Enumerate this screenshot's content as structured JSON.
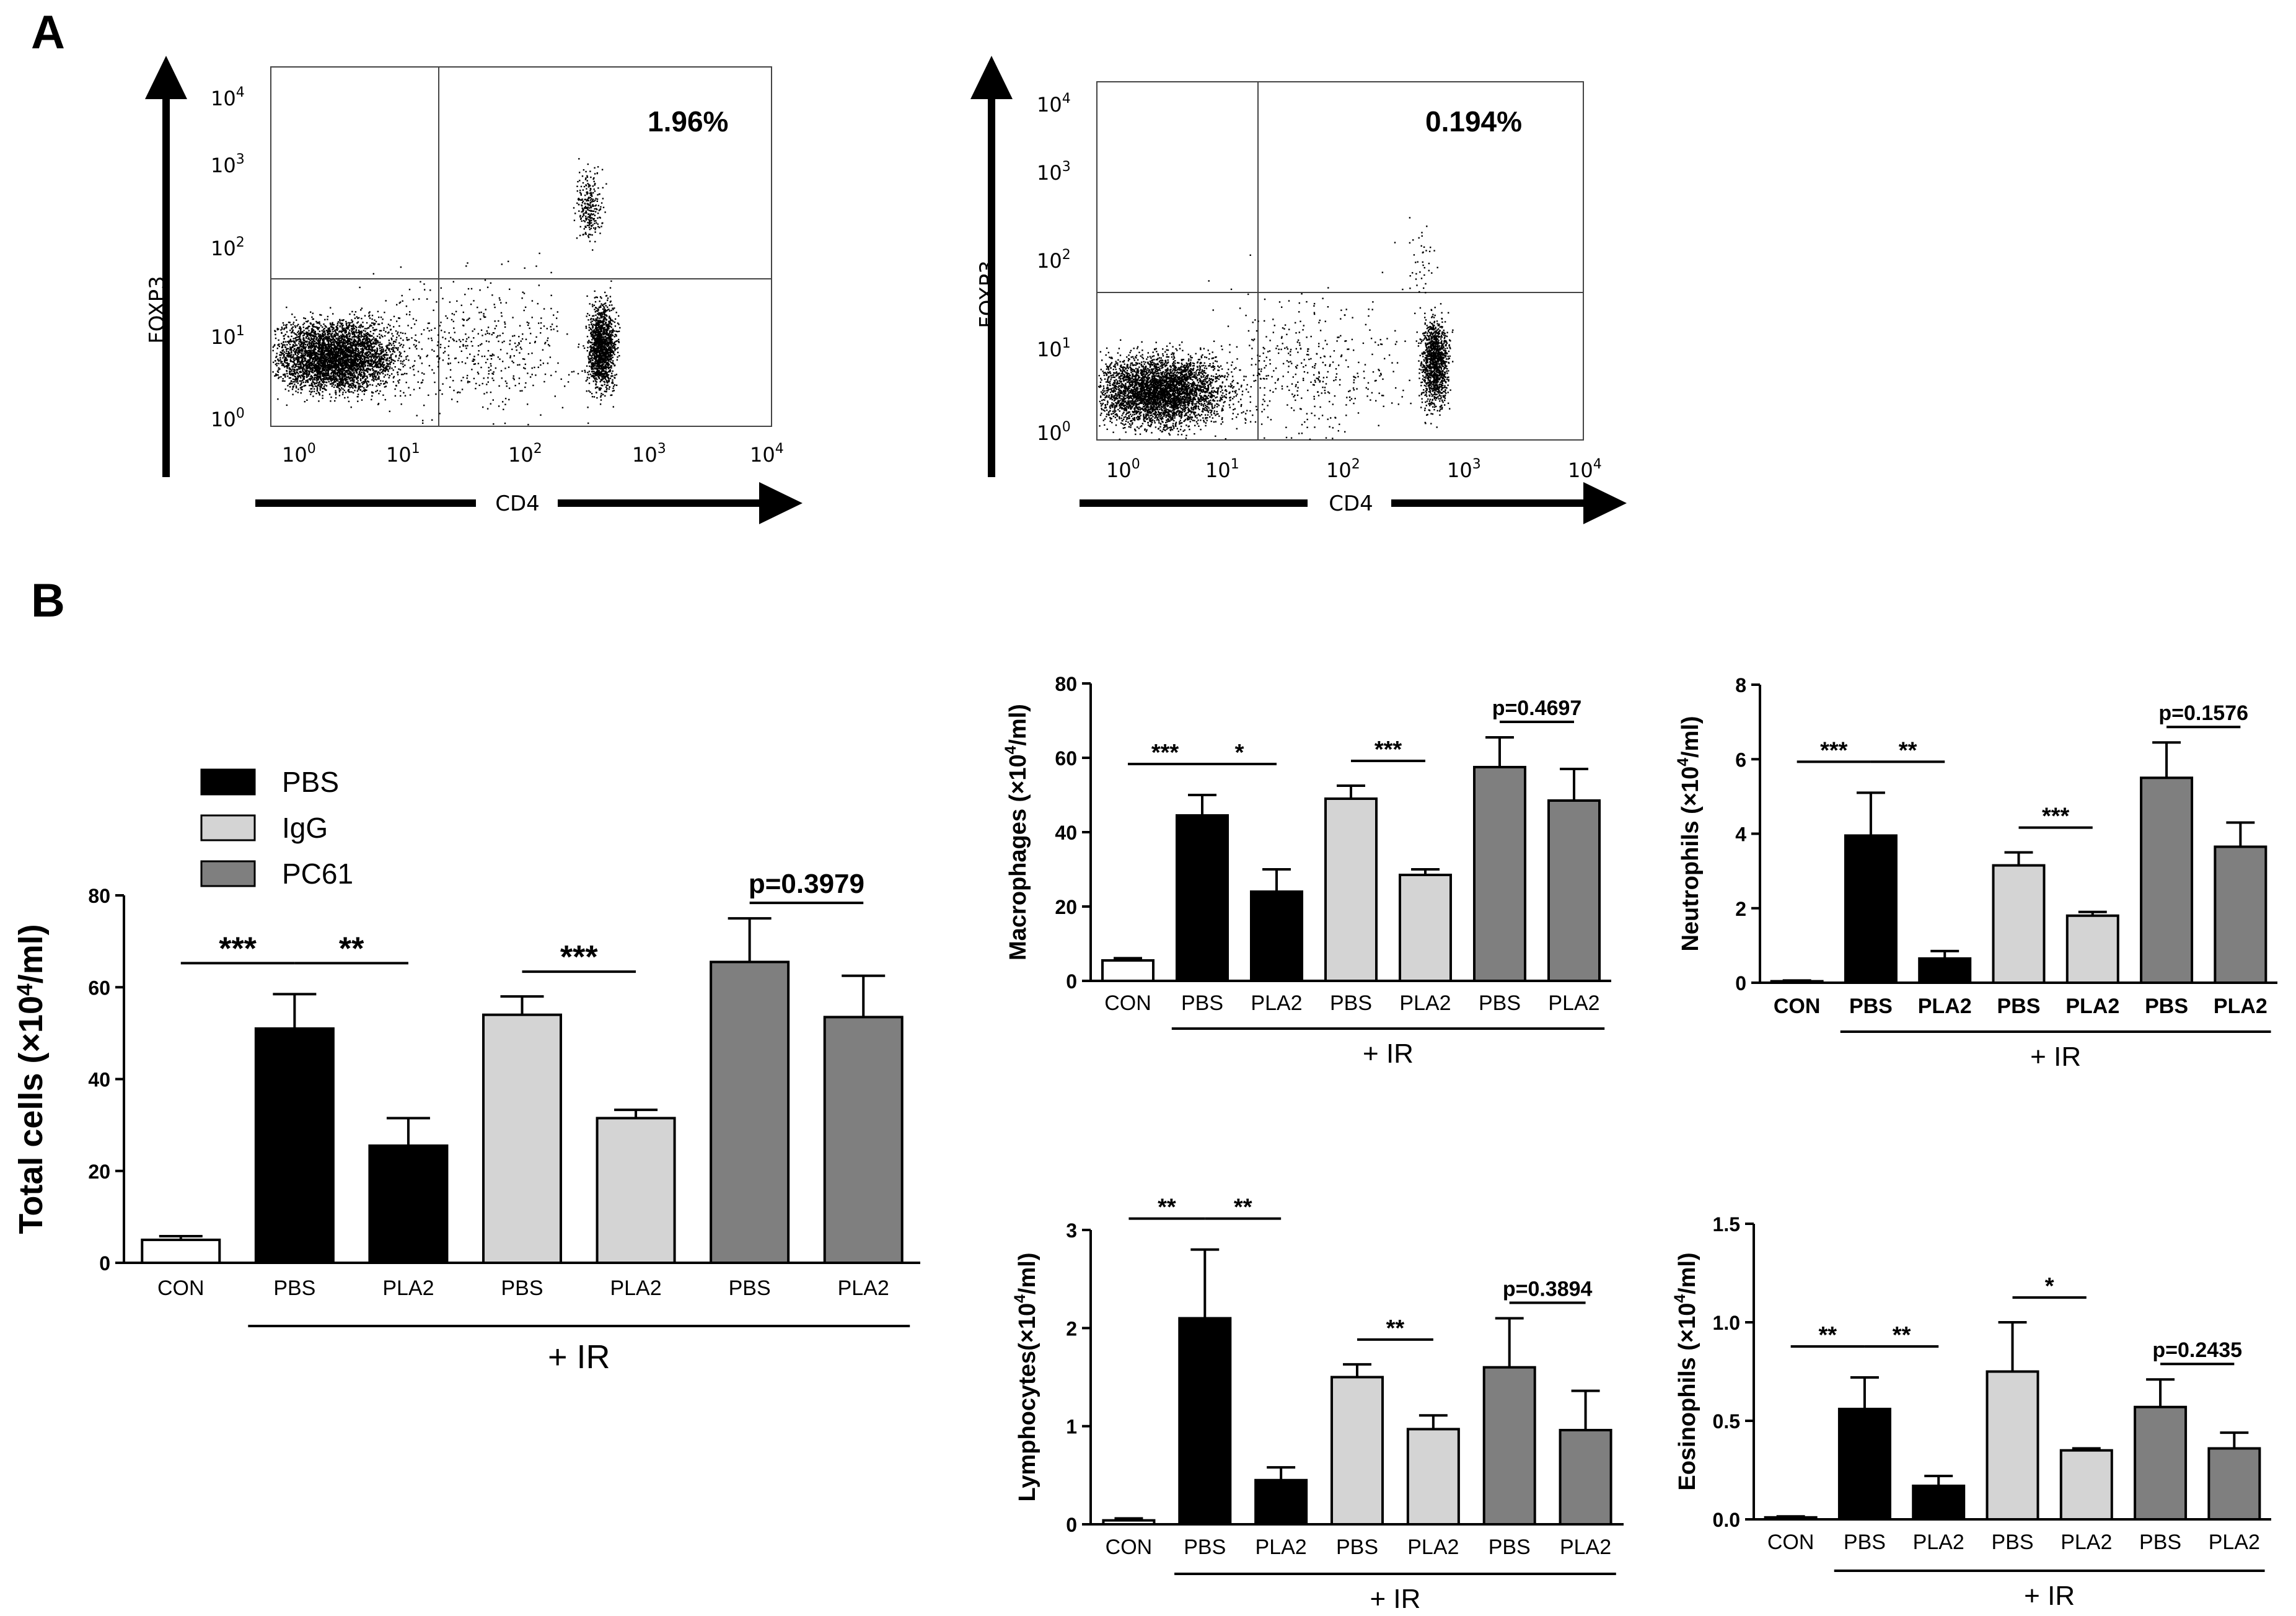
{
  "panels": {
    "a": "A",
    "b": "B"
  },
  "legend": [
    {
      "label": "PBS",
      "color": "#000000"
    },
    {
      "label": "IgG",
      "color": "#d4d4d4"
    },
    {
      "label": "PC61",
      "color": "#7f7f7f"
    }
  ],
  "colors": {
    "con": "#ffffff",
    "pbs": "#000000",
    "igg": "#d4d4d4",
    "pc61": "#7f7f7f"
  },
  "ir_label": "+ IR",
  "flow_data": [
    {
      "xlabel": "CD4",
      "ylabel": "FOXP3",
      "percent": "1.96%",
      "ticks": [
        "10",
        "10",
        "10",
        "10",
        "10"
      ],
      "exponents": [
        "0",
        "1",
        "2",
        "3",
        "4"
      ]
    },
    {
      "xlabel": "CD4",
      "ylabel": "FOXP3",
      "percent": "0.194%",
      "ticks": [
        "10",
        "10",
        "10",
        "10",
        "10"
      ],
      "exponents": [
        "0",
        "1",
        "2",
        "3",
        "4"
      ]
    }
  ],
  "chart_data": [
    {
      "type": "bar",
      "id": "total",
      "ylabel_pre": "Total cells (×10",
      "ylabel_exp": "4",
      "ylabel_post": "/ml)",
      "categories": [
        "CON",
        "PBS",
        "PLA2",
        "PBS",
        "PLA2",
        "PBS",
        "PLA2"
      ],
      "groups": [
        "con",
        "pbs",
        "pbs",
        "igg",
        "igg",
        "pc61",
        "pc61"
      ],
      "values": [
        5,
        51,
        25.5,
        54,
        31.5,
        65.5,
        53.5
      ],
      "errors": [
        0.8,
        7.5,
        6,
        4,
        1.8,
        9.5,
        9
      ],
      "ylim": [
        0,
        80
      ],
      "yticks": [
        "0",
        "20",
        "40",
        "60",
        "80"
      ],
      "significance": [
        {
          "label": "***",
          "from": 0,
          "to": 1
        },
        {
          "label": "**",
          "from": 1,
          "to": 2
        },
        {
          "label": "***",
          "from": 3,
          "to": 4
        },
        {
          "label": "p=0.3979",
          "from": 5,
          "to": 6
        }
      ]
    },
    {
      "type": "bar",
      "id": "macrophages",
      "ylabel_pre": "Macrophages (×10",
      "ylabel_exp": "4",
      "ylabel_post": "/ml)",
      "categories": [
        "CON",
        "PBS",
        "PLA2",
        "PBS",
        "PLA2",
        "PBS",
        "PLA2"
      ],
      "groups": [
        "con",
        "pbs",
        "pbs",
        "igg",
        "igg",
        "pc61",
        "pc61"
      ],
      "values": [
        5.5,
        44.5,
        24,
        49,
        28.5,
        57.5,
        48.5
      ],
      "errors": [
        0.6,
        5.5,
        6,
        3.5,
        1.5,
        8,
        8.5
      ],
      "ylim": [
        0,
        80
      ],
      "yticks": [
        "0",
        "20",
        "40",
        "60",
        "80"
      ],
      "significance": [
        {
          "label": "***",
          "from": 0,
          "to": 1
        },
        {
          "label": "*",
          "from": 1,
          "to": 2
        },
        {
          "label": "***",
          "from": 3,
          "to": 4
        },
        {
          "label": "p=0.4697",
          "from": 5,
          "to": 6
        }
      ]
    },
    {
      "type": "bar",
      "id": "neutrophils",
      "ylabel_pre": "Neutrophils (×10",
      "ylabel_exp": "4",
      "ylabel_post": "/ml)",
      "categories": [
        "CON",
        "PBS",
        "PLA2",
        "PBS",
        "PLA2",
        "PBS",
        "PLA2"
      ],
      "groups": [
        "con",
        "pbs",
        "pbs",
        "igg",
        "igg",
        "pc61",
        "pc61"
      ],
      "values": [
        0.04,
        3.95,
        0.65,
        3.15,
        1.8,
        5.5,
        3.65
      ],
      "errors": [
        0.02,
        1.15,
        0.2,
        0.35,
        0.1,
        0.95,
        0.65
      ],
      "ylim": [
        0,
        8
      ],
      "yticks": [
        "0",
        "2",
        "4",
        "6",
        "8"
      ],
      "significance": [
        {
          "label": "***",
          "from": 0,
          "to": 1
        },
        {
          "label": "**",
          "from": 1,
          "to": 2
        },
        {
          "label": "***",
          "from": 3,
          "to": 4
        },
        {
          "label": "p=0.1576",
          "from": 5,
          "to": 6
        }
      ]
    },
    {
      "type": "bar",
      "id": "lymphocytes",
      "ylabel_pre": "Lymphocytes(×10",
      "ylabel_exp": "4",
      "ylabel_post": "/ml)",
      "categories": [
        "CON",
        "PBS",
        "PLA2",
        "PBS",
        "PLA2",
        "PBS",
        "PLA2"
      ],
      "groups": [
        "con",
        "pbs",
        "pbs",
        "igg",
        "igg",
        "pc61",
        "pc61"
      ],
      "values": [
        0.04,
        2.1,
        0.45,
        1.5,
        0.97,
        1.6,
        0.96
      ],
      "errors": [
        0.02,
        0.7,
        0.13,
        0.13,
        0.14,
        0.5,
        0.4
      ],
      "ylim": [
        0,
        3
      ],
      "yticks": [
        "0",
        "1",
        "2",
        "3"
      ],
      "significance": [
        {
          "label": "**",
          "from": 0,
          "to": 1
        },
        {
          "label": "**",
          "from": 1,
          "to": 2
        },
        {
          "label": "**",
          "from": 3,
          "to": 4
        },
        {
          "label": "p=0.3894",
          "from": 5,
          "to": 6
        }
      ]
    },
    {
      "type": "bar",
      "id": "eosinophils",
      "ylabel_pre": "Eosinophils (×10",
      "ylabel_exp": "4",
      "ylabel_post": "/ml)",
      "categories": [
        "CON",
        "PBS",
        "PLA2",
        "PBS",
        "PLA2",
        "PBS",
        "PLA2"
      ],
      "groups": [
        "con",
        "pbs",
        "pbs",
        "igg",
        "igg",
        "pc61",
        "pc61"
      ],
      "values": [
        0.01,
        0.56,
        0.17,
        0.75,
        0.35,
        0.57,
        0.36
      ],
      "errors": [
        0.005,
        0.16,
        0.05,
        0.25,
        0.01,
        0.14,
        0.08
      ],
      "ylim": [
        0,
        1.5
      ],
      "yticks": [
        "0.0",
        "0.5",
        "1.0",
        "1.5"
      ],
      "significance": [
        {
          "label": "**",
          "from": 0,
          "to": 1
        },
        {
          "label": "**",
          "from": 1,
          "to": 2
        },
        {
          "label": "*",
          "from": 3,
          "to": 4
        },
        {
          "label": "p=0.2435",
          "from": 5,
          "to": 6
        }
      ]
    }
  ]
}
